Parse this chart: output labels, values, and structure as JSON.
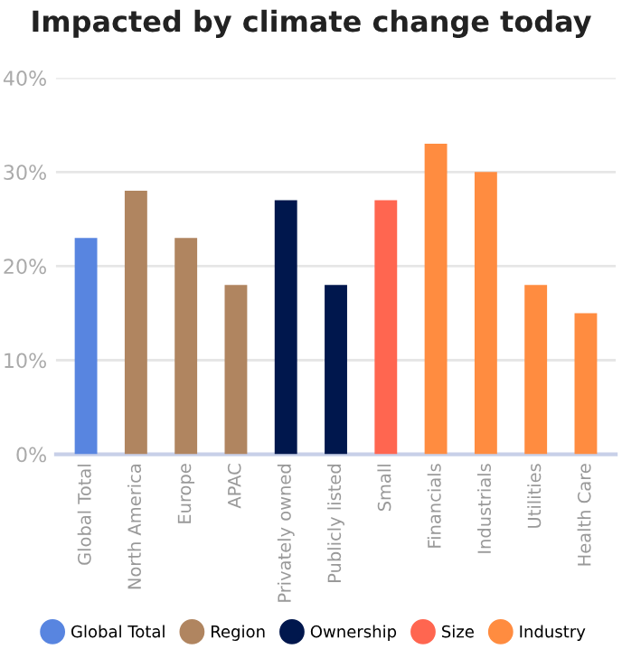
{
  "chart_data": {
    "type": "bar",
    "title": "Impacted by climate change today",
    "categories": [
      "Global Total",
      "North America",
      "Europe",
      "APAC",
      "Privately owned",
      "Publicly listed",
      "Small",
      "Financials",
      "Industrials",
      "Utilities",
      "Health Care"
    ],
    "series": [
      {
        "name": "Global Total",
        "color": "#5885e0",
        "values": [
          23,
          null,
          null,
          null,
          null,
          null,
          null,
          null,
          null,
          null,
          null
        ]
      },
      {
        "name": "Region",
        "color": "#b08560",
        "values": [
          null,
          28,
          23,
          18,
          null,
          null,
          null,
          null,
          null,
          null,
          null
        ]
      },
      {
        "name": "Ownership",
        "color": "#00174d",
        "values": [
          null,
          null,
          null,
          null,
          27,
          18,
          null,
          null,
          null,
          null,
          null
        ]
      },
      {
        "name": "Size",
        "color": "#ff6650",
        "values": [
          null,
          null,
          null,
          null,
          null,
          null,
          27,
          null,
          null,
          null,
          null
        ]
      },
      {
        "name": "Industry",
        "color": "#ff8c40",
        "values": [
          null,
          null,
          null,
          null,
          null,
          null,
          null,
          33,
          30,
          18,
          15
        ]
      }
    ],
    "ylim": [
      0,
      40
    ],
    "yticks": [
      {
        "value": 0,
        "label": "0%"
      },
      {
        "value": 10,
        "label": "10%"
      },
      {
        "value": 20,
        "label": "20%"
      },
      {
        "value": 30,
        "label": "30%"
      },
      {
        "value": 40,
        "label": "40%"
      }
    ],
    "grid": "y",
    "legend": "bottom"
  }
}
